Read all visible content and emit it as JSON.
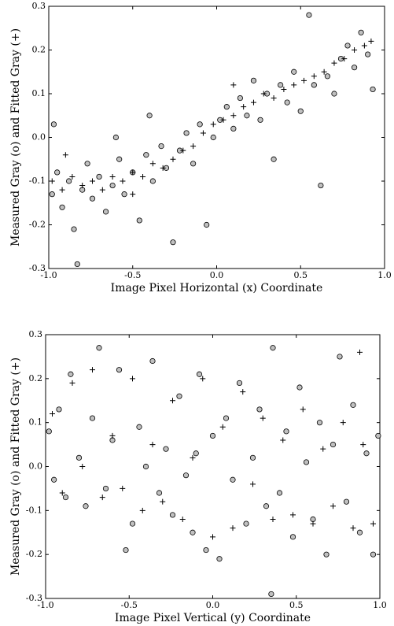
{
  "chart_data": [
    {
      "type": "scatter",
      "xlabel": "Image Pixel Horizontal (x) Coordinate",
      "ylabel": "Measured Gray (o) and Fitted Gray (+)",
      "xlim": [
        -1.0,
        1.0
      ],
      "ylim": [
        -0.3,
        0.3
      ],
      "xticks": [
        {
          "value": -1.0,
          "label": "-1.0"
        },
        {
          "value": -0.5,
          "label": "-0.5"
        },
        {
          "value": 0.0,
          "label": "0.0"
        },
        {
          "value": 0.5,
          "label": "0.5"
        },
        {
          "value": 1.0,
          "label": "1.0"
        }
      ],
      "yticks": [
        -0.3,
        -0.2,
        -0.1,
        {
          "value": 0.0,
          "label": "0.0"
        },
        0.1,
        0.2,
        0.3
      ],
      "series": [
        {
          "marker": "o",
          "color": "#c0c0c0",
          "x": [
            -0.98,
            -0.95,
            -0.92,
            -0.88,
            -0.85,
            -0.83,
            -0.8,
            -0.77,
            -0.74,
            -0.7,
            -0.66,
            -0.62,
            -0.58,
            -0.55,
            -0.5,
            -0.46,
            -0.42,
            -0.38,
            -0.33,
            -0.3,
            -0.26,
            -0.22,
            -0.18,
            -0.14,
            -0.1,
            -0.06,
            -0.02,
            0.02,
            0.06,
            0.1,
            0.14,
            0.18,
            0.22,
            0.26,
            0.3,
            0.34,
            0.38,
            0.42,
            0.46,
            0.5,
            0.55,
            0.58,
            0.62,
            0.66,
            0.7,
            0.74,
            0.78,
            0.82,
            0.86,
            0.9,
            0.93,
            -0.97,
            -0.6,
            -0.4
          ],
          "values": [
            -0.13,
            -0.08,
            -0.16,
            -0.1,
            -0.21,
            -0.29,
            -0.12,
            -0.06,
            -0.14,
            -0.09,
            -0.17,
            -0.11,
            -0.05,
            -0.13,
            -0.08,
            -0.19,
            -0.04,
            -0.1,
            -0.02,
            -0.07,
            -0.24,
            -0.03,
            0.01,
            -0.06,
            0.03,
            -0.2,
            0.0,
            0.04,
            0.07,
            0.02,
            0.09,
            0.05,
            0.13,
            0.04,
            0.1,
            -0.05,
            0.12,
            0.08,
            0.15,
            0.06,
            0.28,
            0.12,
            -0.11,
            0.14,
            0.1,
            0.18,
            0.21,
            0.16,
            0.24,
            0.19,
            0.11,
            0.03,
            0.0,
            0.05
          ]
        },
        {
          "marker": "+",
          "color": "#000000",
          "x": [
            -0.98,
            -0.92,
            -0.86,
            -0.8,
            -0.74,
            -0.68,
            -0.62,
            -0.56,
            -0.5,
            -0.44,
            -0.38,
            -0.32,
            -0.26,
            -0.2,
            -0.14,
            -0.08,
            -0.02,
            0.04,
            0.1,
            0.16,
            0.22,
            0.28,
            0.34,
            0.4,
            0.46,
            0.52,
            0.58,
            0.64,
            0.7,
            0.76,
            0.82,
            0.88,
            0.92,
            -0.9,
            -0.5,
            0.1
          ],
          "values": [
            -0.1,
            -0.12,
            -0.09,
            -0.11,
            -0.1,
            -0.12,
            -0.09,
            -0.1,
            -0.08,
            -0.09,
            -0.06,
            -0.07,
            -0.05,
            -0.03,
            -0.02,
            0.01,
            0.03,
            0.04,
            0.05,
            0.07,
            0.08,
            0.1,
            0.09,
            0.11,
            0.12,
            0.13,
            0.14,
            0.15,
            0.17,
            0.18,
            0.2,
            0.21,
            0.22,
            -0.04,
            -0.13,
            0.12
          ]
        }
      ]
    },
    {
      "type": "scatter",
      "xlabel": "Image Pixel Vertical (y)  Coordinate",
      "ylabel": "Measured Gray (o) and Fitted Gray (+)",
      "xlim": [
        -1.0,
        1.0
      ],
      "ylim": [
        -0.3,
        0.3
      ],
      "xticks": [
        {
          "value": -1.0,
          "label": "-1.0"
        },
        {
          "value": -0.5,
          "label": "-0.5"
        },
        {
          "value": 0.0,
          "label": "0.0"
        },
        {
          "value": 0.5,
          "label": "0.5"
        },
        {
          "value": 1.0,
          "label": "1.0"
        }
      ],
      "yticks": [
        -0.3,
        -0.2,
        -0.1,
        {
          "value": 0.0,
          "label": "0.0"
        },
        0.1,
        0.2,
        0.3
      ],
      "series": [
        {
          "marker": "o",
          "color": "#c0c0c0",
          "x": [
            -0.98,
            -0.95,
            -0.92,
            -0.88,
            -0.85,
            -0.8,
            -0.76,
            -0.72,
            -0.68,
            -0.64,
            -0.6,
            -0.56,
            -0.52,
            -0.48,
            -0.44,
            -0.4,
            -0.36,
            -0.32,
            -0.28,
            -0.24,
            -0.2,
            -0.16,
            -0.12,
            -0.08,
            -0.04,
            0.0,
            0.04,
            0.08,
            0.12,
            0.16,
            0.2,
            0.24,
            0.28,
            0.32,
            0.36,
            0.4,
            0.44,
            0.48,
            0.52,
            0.56,
            0.6,
            0.64,
            0.68,
            0.72,
            0.76,
            0.8,
            0.84,
            0.88,
            0.92,
            0.96,
            0.99,
            0.35,
            -0.1
          ],
          "values": [
            0.08,
            -0.03,
            0.13,
            -0.07,
            0.21,
            0.02,
            -0.09,
            0.11,
            0.27,
            -0.05,
            0.06,
            0.22,
            -0.19,
            -0.13,
            0.09,
            0.0,
            0.24,
            -0.06,
            0.04,
            -0.11,
            0.16,
            -0.02,
            -0.15,
            0.21,
            -0.19,
            0.07,
            -0.21,
            0.11,
            -0.03,
            0.19,
            -0.13,
            0.02,
            0.13,
            -0.09,
            0.27,
            -0.06,
            0.08,
            -0.16,
            0.18,
            0.01,
            -0.12,
            0.1,
            -0.2,
            0.05,
            0.25,
            -0.08,
            0.14,
            -0.15,
            0.03,
            -0.2,
            0.07,
            -0.29,
            0.03
          ]
        },
        {
          "marker": "+",
          "color": "#000000",
          "x": [
            -0.96,
            -0.9,
            -0.84,
            -0.78,
            -0.72,
            -0.66,
            -0.6,
            -0.54,
            -0.48,
            -0.42,
            -0.36,
            -0.3,
            -0.24,
            -0.18,
            -0.12,
            -0.06,
            0.0,
            0.06,
            0.12,
            0.18,
            0.24,
            0.3,
            0.36,
            0.42,
            0.48,
            0.54,
            0.6,
            0.66,
            0.72,
            0.78,
            0.84,
            0.9,
            0.96,
            0.88
          ],
          "values": [
            0.12,
            -0.06,
            0.19,
            0.0,
            0.22,
            -0.07,
            0.07,
            -0.05,
            0.2,
            -0.1,
            0.05,
            -0.08,
            0.15,
            -0.12,
            0.02,
            0.2,
            -0.16,
            0.09,
            -0.14,
            0.17,
            -0.04,
            0.11,
            -0.12,
            0.06,
            -0.11,
            0.13,
            -0.13,
            0.04,
            -0.09,
            0.1,
            -0.14,
            0.05,
            -0.13,
            0.26
          ]
        }
      ]
    }
  ]
}
